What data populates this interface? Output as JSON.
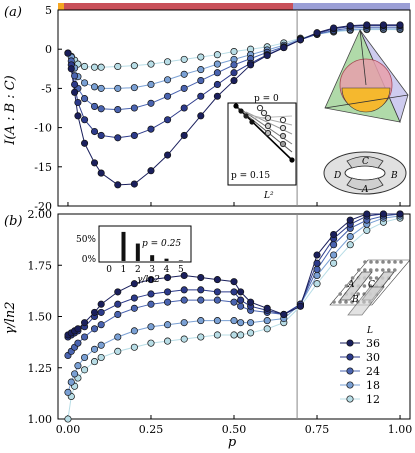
{
  "chart_data": [
    {
      "type": "line",
      "panel_label": "(a)",
      "ylabel": "I(A : B : C)",
      "xlim": [
        -0.03,
        1.03
      ],
      "ylim": [
        -20,
        5
      ],
      "yticks": [
        "5",
        "0",
        "-5",
        "-10",
        "-15",
        "-20"
      ],
      "ytick_values": [
        5,
        0,
        -5,
        -10,
        -15,
        -20
      ],
      "critical_x": 0.69,
      "top_bar_colors": {
        "left": "#f5a623",
        "mid": "#c9505a",
        "right": "#9b9fd6"
      },
      "x": [
        0.0,
        0.01,
        0.02,
        0.03,
        0.05,
        0.08,
        0.1,
        0.15,
        0.2,
        0.25,
        0.3,
        0.35,
        0.4,
        0.45,
        0.5,
        0.55,
        0.6,
        0.65,
        0.7,
        0.75,
        0.8,
        0.85,
        0.9,
        0.95,
        1.0
      ],
      "series": [
        {
          "name": "36",
          "color": "#1a1f5c",
          "values": [
            -0.5,
            -2.5,
            -5.5,
            -8.5,
            -12.0,
            -14.5,
            -15.8,
            -17.3,
            -17.2,
            -15.5,
            -13.5,
            -11.0,
            -8.5,
            -6.0,
            -4.0,
            -2.0,
            -0.8,
            0.2,
            1.2,
            2.1,
            2.7,
            3.0,
            3.1,
            3.1,
            3.1
          ]
        },
        {
          "name": "30",
          "color": "#2c3a8a",
          "values": [
            -0.5,
            -2.0,
            -4.5,
            -6.8,
            -9.0,
            -10.5,
            -11.0,
            -11.3,
            -11.0,
            -10.2,
            -9.0,
            -7.5,
            -6.0,
            -4.5,
            -3.0,
            -1.8,
            -0.7,
            0.2,
            1.2,
            2.0,
            2.6,
            2.9,
            3.0,
            3.0,
            3.0
          ]
        },
        {
          "name": "24",
          "color": "#4a64b0",
          "values": [
            -0.5,
            -1.5,
            -3.4,
            -5.0,
            -6.3,
            -7.3,
            -7.6,
            -7.7,
            -7.5,
            -6.9,
            -6.0,
            -5.0,
            -4.0,
            -3.0,
            -2.0,
            -1.2,
            -0.4,
            0.3,
            1.2,
            1.9,
            2.4,
            2.7,
            2.8,
            2.8,
            2.8
          ]
        },
        {
          "name": "18",
          "color": "#7aa0d4",
          "values": [
            -0.5,
            -1.0,
            -2.4,
            -3.5,
            -4.3,
            -4.8,
            -5.0,
            -5.0,
            -4.9,
            -4.5,
            -3.9,
            -3.2,
            -2.6,
            -1.9,
            -1.3,
            -0.7,
            -0.1,
            0.5,
            1.3,
            1.9,
            2.3,
            2.5,
            2.6,
            2.6,
            2.6
          ]
        },
        {
          "name": "12",
          "color": "#b8dde6",
          "values": [
            -0.5,
            -0.9,
            -1.4,
            -1.9,
            -2.2,
            -2.3,
            -2.3,
            -2.2,
            -2.1,
            -1.9,
            -1.6,
            -1.3,
            -1.0,
            -0.7,
            -0.3,
            0.0,
            0.3,
            0.8,
            1.4,
            1.9,
            2.2,
            2.4,
            2.5,
            2.5,
            2.5
          ]
        }
      ],
      "inset": {
        "xlabel": "L²",
        "annotations": [
          "p = 0",
          "p = 0.15"
        ]
      },
      "diagram": {
        "labels": [
          "C",
          "D",
          "A",
          "B"
        ]
      }
    },
    {
      "type": "line",
      "panel_label": "(b)",
      "ylabel": "γ/ln2",
      "xlabel": "p",
      "xlim": [
        -0.03,
        1.03
      ],
      "ylim": [
        1.0,
        2.0
      ],
      "xticks": [
        "0.00",
        "0.25",
        "0.50",
        "0.75",
        "1.00"
      ],
      "xtick_values": [
        0.0,
        0.25,
        0.5,
        0.75,
        1.0
      ],
      "yticks": [
        "2.00",
        "1.75",
        "1.50",
        "1.25",
        "1.00"
      ],
      "ytick_values": [
        2.0,
        1.75,
        1.5,
        1.25,
        1.0
      ],
      "critical_x": 0.69,
      "x": [
        0.0,
        0.01,
        0.02,
        0.03,
        0.05,
        0.08,
        0.1,
        0.15,
        0.2,
        0.25,
        0.3,
        0.35,
        0.4,
        0.45,
        0.5,
        0.52,
        0.55,
        0.6,
        0.65,
        0.7,
        0.75,
        0.8,
        0.85,
        0.9,
        0.95,
        1.0
      ],
      "series": [
        {
          "name": "36",
          "color": "#1a1f5c",
          "values": [
            1.41,
            1.42,
            1.43,
            1.44,
            1.47,
            1.52,
            1.56,
            1.62,
            1.66,
            1.68,
            1.69,
            1.7,
            1.69,
            1.68,
            1.67,
            1.62,
            1.57,
            1.54,
            1.51,
            1.55,
            1.8,
            1.9,
            1.97,
            2.0,
            2.0,
            2.0
          ]
        },
        {
          "name": "30",
          "color": "#2c3a8a",
          "values": [
            1.4,
            1.41,
            1.42,
            1.43,
            1.45,
            1.5,
            1.52,
            1.56,
            1.59,
            1.61,
            1.62,
            1.63,
            1.63,
            1.62,
            1.62,
            1.58,
            1.55,
            1.53,
            1.51,
            1.56,
            1.76,
            1.88,
            1.95,
            1.99,
            2.0,
            2.0
          ]
        },
        {
          "name": "24",
          "color": "#4a64b0",
          "values": [
            1.31,
            1.33,
            1.35,
            1.37,
            1.4,
            1.44,
            1.46,
            1.51,
            1.54,
            1.56,
            1.57,
            1.58,
            1.58,
            1.58,
            1.57,
            1.55,
            1.53,
            1.52,
            1.51,
            1.56,
            1.73,
            1.85,
            1.93,
            1.97,
            1.99,
            2.0
          ]
        },
        {
          "name": "18",
          "color": "#7aa0d4",
          "values": [
            1.13,
            1.18,
            1.22,
            1.26,
            1.3,
            1.34,
            1.36,
            1.4,
            1.43,
            1.45,
            1.46,
            1.47,
            1.48,
            1.48,
            1.48,
            1.47,
            1.47,
            1.48,
            1.49,
            1.56,
            1.7,
            1.8,
            1.89,
            1.95,
            1.98,
            1.99
          ]
        },
        {
          "name": "12",
          "color": "#b8dde6",
          "values": [
            1.0,
            1.11,
            1.16,
            1.2,
            1.24,
            1.28,
            1.3,
            1.33,
            1.35,
            1.37,
            1.38,
            1.39,
            1.4,
            1.41,
            1.41,
            1.41,
            1.42,
            1.44,
            1.47,
            1.55,
            1.66,
            1.76,
            1.85,
            1.92,
            1.96,
            1.98
          ]
        }
      ],
      "legend": {
        "title": "L",
        "placement": "bottom-right",
        "entries": [
          "36",
          "30",
          "24",
          "18",
          "12"
        ]
      },
      "inset": {
        "type": "bar",
        "categories": [
          "0",
          "1",
          "2",
          "3",
          "4",
          "5"
        ],
        "values": [
          0,
          50,
          30,
          10,
          4,
          1
        ],
        "yticks": [
          "50%",
          "0%"
        ],
        "xlabel": "γ/ln2",
        "annotation": "p = 0.25"
      },
      "diagram": {
        "labels": [
          "A",
          "C",
          "B"
        ]
      }
    }
  ]
}
